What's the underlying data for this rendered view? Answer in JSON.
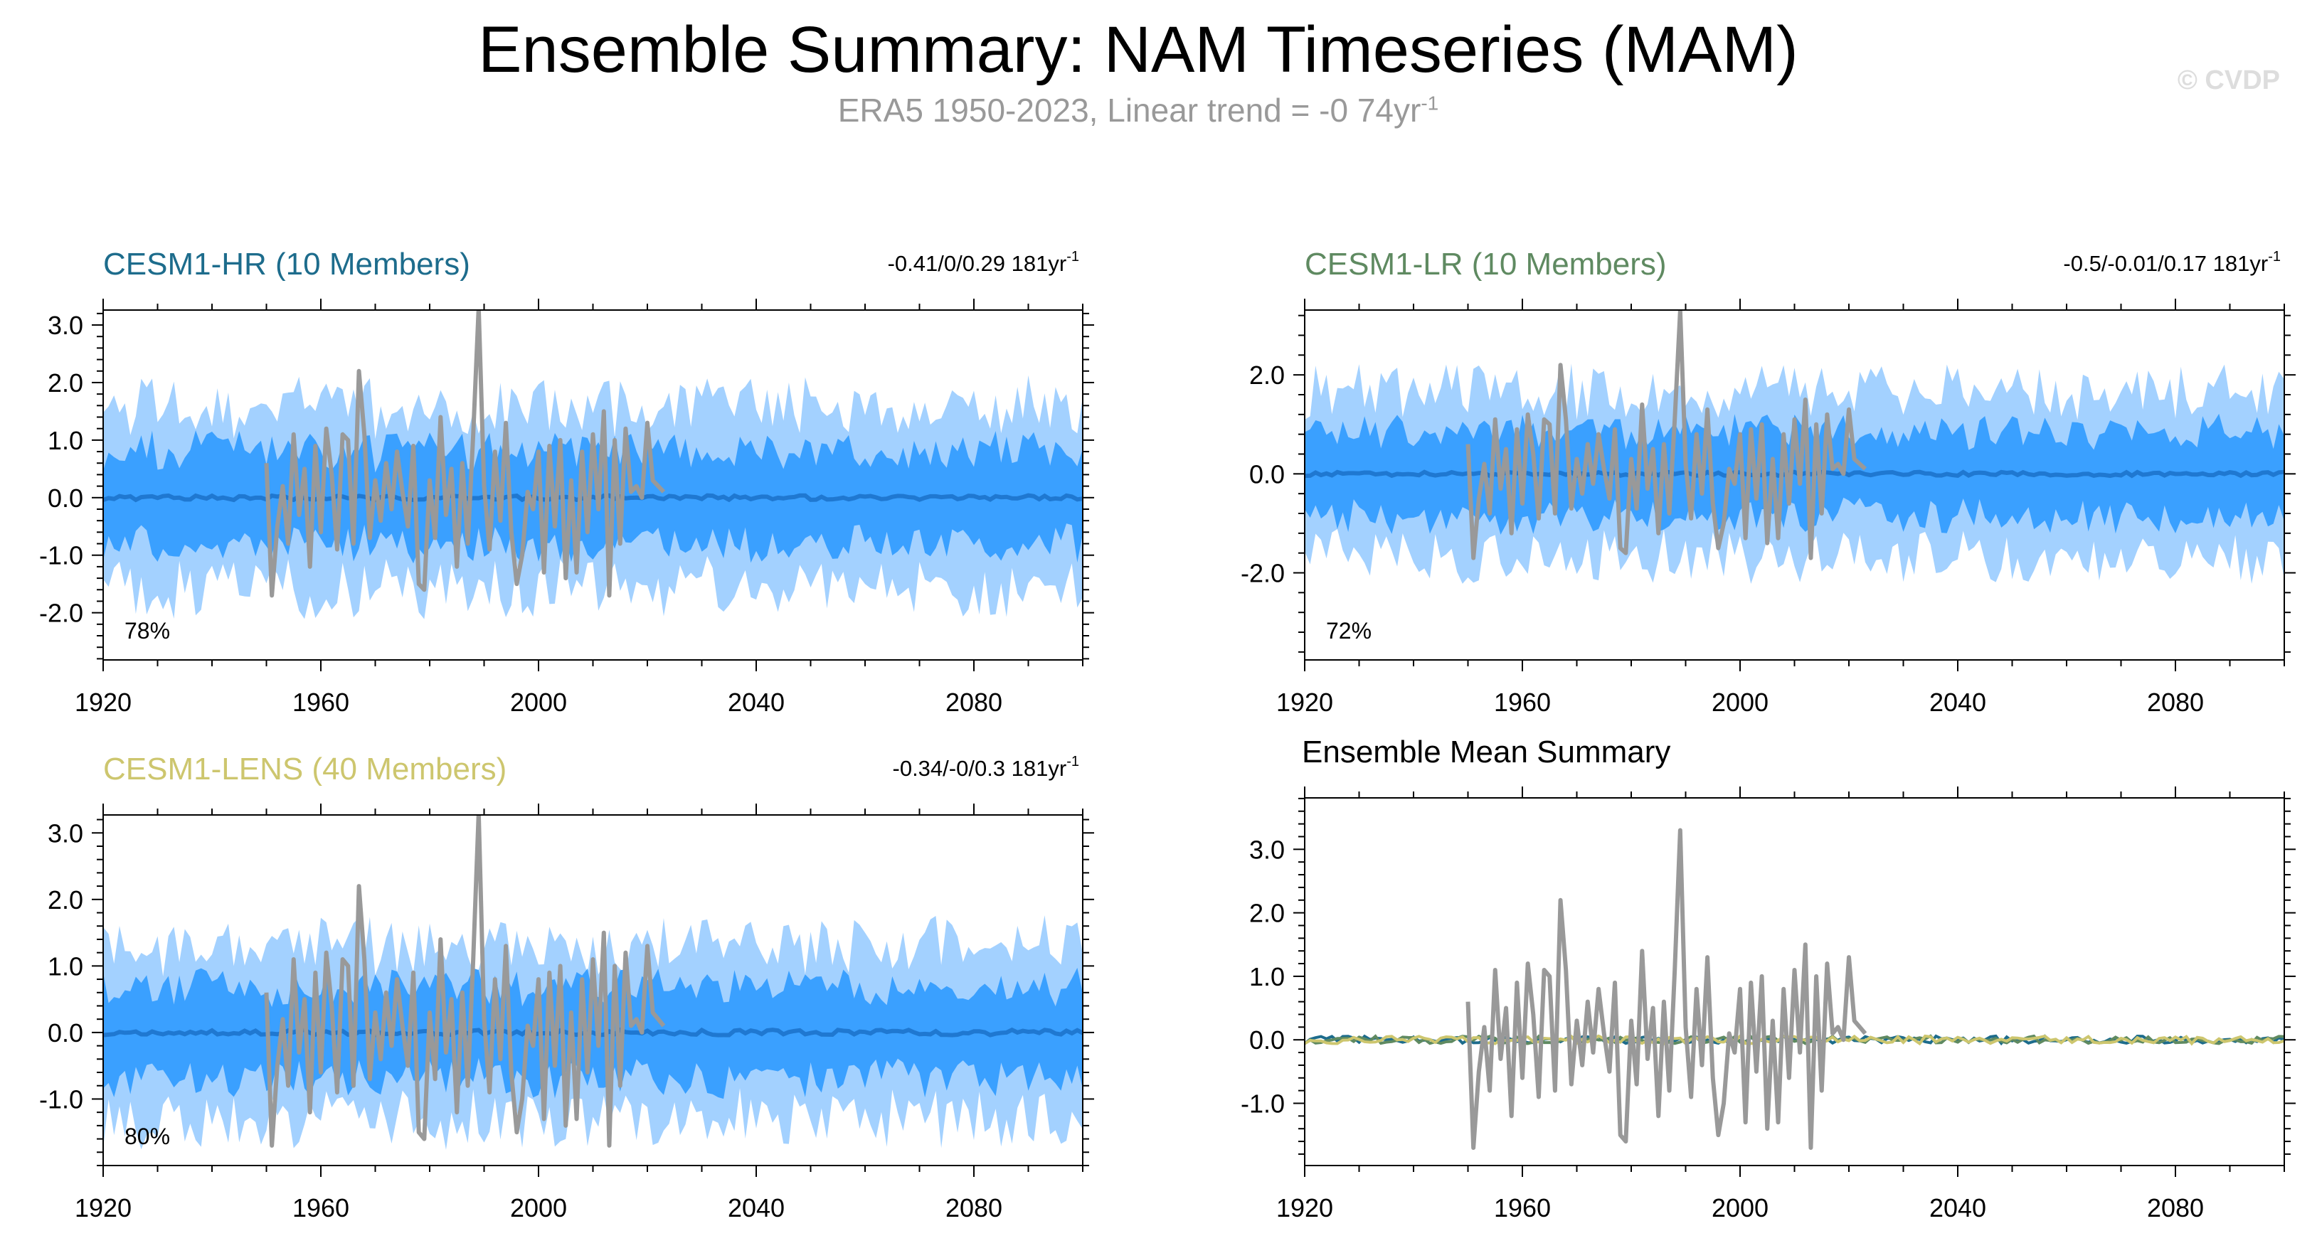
{
  "title": "Ensemble Summary: NAM Timeseries (MAM)",
  "subtitle": {
    "text": "ERA5 1950-2023, Linear trend = -0 74yr",
    "superscript": "-1"
  },
  "watermark": "© CVDP",
  "colors": {
    "band_outer": "#a3d1ff",
    "band_inner": "#3aa0ff",
    "ens_mean": "#1f78d1",
    "obs": "#999999"
  },
  "chart_data": [
    {
      "type": "area",
      "title": "CESM1-HR (10 Members)",
      "title_color": "#1d6c8c",
      "trend": "-0.41/0/0.29 181yr",
      "trend_sup": "-1",
      "percent": "78%",
      "xlim": [
        1920,
        2100
      ],
      "ylim": [
        -2.82,
        3.26
      ],
      "xticks": [
        "1920",
        "1960",
        "2000",
        "2040",
        "2080"
      ],
      "yticks": [
        -2.0,
        -1.0,
        0.0,
        1.0,
        2.0,
        3.0
      ],
      "ytick_labels": [
        "-2.0",
        "-1.0",
        "0.0",
        "1.0",
        "2.0",
        "3.0"
      ],
      "band_outer_amp": 1.75,
      "band_inner_amp": 0.95,
      "seed": 11
    },
    {
      "type": "area",
      "title": "CESM1-LR (10 Members)",
      "title_color": "#5f8a61",
      "trend": "-0.5/-0.01/0.17 181yr",
      "trend_sup": "-1",
      "percent": "72%",
      "xlim": [
        1920,
        2100
      ],
      "ylim": [
        -3.76,
        3.31
      ],
      "xticks": [
        "1920",
        "1960",
        "2000",
        "2040",
        "2080"
      ],
      "yticks": [
        -2.0,
        0.0,
        2.0
      ],
      "ytick_labels": [
        "-2.0",
        "0.0",
        "2.0"
      ],
      "band_outer_amp": 1.85,
      "band_inner_amp": 1.0,
      "seed": 23
    },
    {
      "type": "area",
      "title": "CESM1-LENS (40 Members)",
      "title_color": "#cdc66e",
      "trend": "-0.34/-0/0.3 181yr",
      "trend_sup": "-1",
      "percent": "80%",
      "xlim": [
        1920,
        2100
      ],
      "ylim": [
        -2.0,
        3.27
      ],
      "xticks": [
        "1920",
        "1960",
        "2000",
        "2040",
        "2080"
      ],
      "yticks": [
        -1.0,
        0.0,
        1.0,
        2.0,
        3.0
      ],
      "ytick_labels": [
        "-1.0",
        "0.0",
        "1.0",
        "2.0",
        "3.0"
      ],
      "band_outer_amp": 1.45,
      "band_inner_amp": 0.8,
      "seed": 37
    },
    {
      "type": "line",
      "title": "Ensemble Mean Summary",
      "title_color": "#000000",
      "xlim": [
        1920,
        2100
      ],
      "ylim": [
        -1.98,
        3.81
      ],
      "xticks": [
        "1920",
        "1960",
        "2000",
        "2040",
        "2080"
      ],
      "yticks": [
        -1.0,
        0.0,
        1.0,
        2.0,
        3.0
      ],
      "ytick_labels": [
        "-1.0",
        "0.0",
        "1.0",
        "2.0",
        "3.0"
      ],
      "series_colors": [
        "#1d6c8c",
        "#5f8a61",
        "#cdc66e"
      ]
    }
  ],
  "obs": {
    "name": "ERA5",
    "start_year": 1950,
    "values": [
      0.6,
      -1.7,
      -0.5,
      0.2,
      -0.8,
      1.1,
      -0.3,
      0.5,
      -1.2,
      0.9,
      -0.6,
      1.2,
      0.4,
      -0.9,
      1.1,
      1.0,
      -0.8,
      2.2,
      1.1,
      -0.7,
      0.3,
      -0.4,
      0.6,
      -0.2,
      0.8,
      0.1,
      -0.5,
      0.9,
      -1.5,
      -1.6,
      0.3,
      -0.7,
      1.4,
      -0.3,
      0.5,
      -1.2,
      0.6,
      -0.8,
      1.1,
      3.3,
      0.2,
      -0.9,
      0.8,
      -0.4,
      1.3,
      -0.6,
      -1.5,
      -1.0,
      0.1,
      -0.2,
      0.8,
      -1.3,
      0.9,
      -0.5,
      1.0,
      -1.4,
      0.3,
      -1.3,
      0.8,
      -0.6,
      1.1,
      -0.2,
      1.5,
      -1.7,
      1.0,
      -0.8,
      1.2,
      0.1,
      0.2,
      0.0,
      1.3,
      0.3,
      0.2,
      0.1
    ]
  }
}
